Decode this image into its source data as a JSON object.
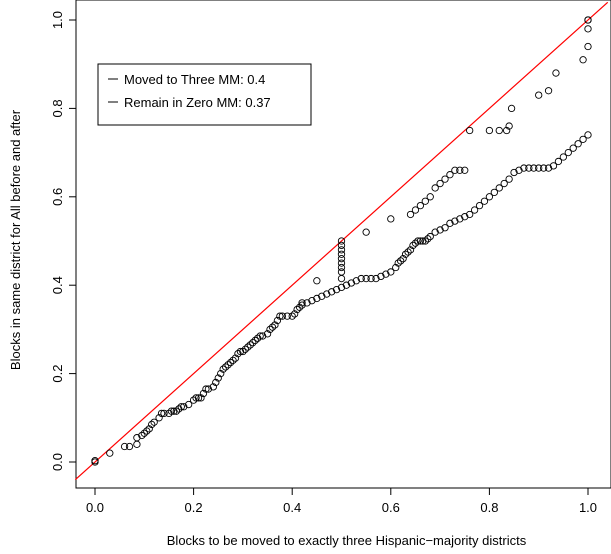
{
  "chart_data": {
    "type": "scatter",
    "xlabel": "Blocks to be moved to exactly three Hispanic−majority districts",
    "ylabel": "Blocks in same district for All before and after",
    "xlim": [
      0,
      1
    ],
    "ylim": [
      0,
      1
    ],
    "x_ticks": [
      "0.0",
      "0.2",
      "0.4",
      "0.6",
      "0.8",
      "1.0"
    ],
    "y_ticks": [
      "0.0",
      "0.2",
      "0.4",
      "0.6",
      "0.8",
      "1.0"
    ],
    "grid": false,
    "reference_line": {
      "from": [
        0,
        0
      ],
      "to": [
        1,
        1
      ],
      "color": "#ff0000"
    },
    "legend": {
      "position": "top-left",
      "entries": [
        {
          "label": "Moved to Three MM: 0.4"
        },
        {
          "label": "Remain in Zero MM:  0.37"
        }
      ]
    },
    "marker_color": "#000000",
    "points": [
      [
        0.0,
        0.0
      ],
      [
        0.0,
        0.003
      ],
      [
        0.03,
        0.02
      ],
      [
        0.06,
        0.035
      ],
      [
        0.07,
        0.035
      ],
      [
        0.085,
        0.04
      ],
      [
        0.085,
        0.055
      ],
      [
        0.095,
        0.06
      ],
      [
        0.1,
        0.065
      ],
      [
        0.105,
        0.07
      ],
      [
        0.11,
        0.075
      ],
      [
        0.115,
        0.085
      ],
      [
        0.12,
        0.09
      ],
      [
        0.13,
        0.1
      ],
      [
        0.135,
        0.11
      ],
      [
        0.14,
        0.11
      ],
      [
        0.15,
        0.11
      ],
      [
        0.155,
        0.115
      ],
      [
        0.16,
        0.115
      ],
      [
        0.165,
        0.115
      ],
      [
        0.17,
        0.12
      ],
      [
        0.175,
        0.125
      ],
      [
        0.18,
        0.125
      ],
      [
        0.19,
        0.13
      ],
      [
        0.2,
        0.14
      ],
      [
        0.205,
        0.145
      ],
      [
        0.21,
        0.145
      ],
      [
        0.215,
        0.145
      ],
      [
        0.22,
        0.155
      ],
      [
        0.225,
        0.165
      ],
      [
        0.23,
        0.165
      ],
      [
        0.24,
        0.17
      ],
      [
        0.245,
        0.18
      ],
      [
        0.25,
        0.19
      ],
      [
        0.255,
        0.2
      ],
      [
        0.26,
        0.21
      ],
      [
        0.265,
        0.215
      ],
      [
        0.27,
        0.22
      ],
      [
        0.275,
        0.225
      ],
      [
        0.28,
        0.23
      ],
      [
        0.285,
        0.235
      ],
      [
        0.29,
        0.245
      ],
      [
        0.295,
        0.25
      ],
      [
        0.3,
        0.25
      ],
      [
        0.305,
        0.255
      ],
      [
        0.31,
        0.26
      ],
      [
        0.315,
        0.265
      ],
      [
        0.32,
        0.27
      ],
      [
        0.325,
        0.275
      ],
      [
        0.33,
        0.28
      ],
      [
        0.335,
        0.285
      ],
      [
        0.34,
        0.285
      ],
      [
        0.35,
        0.29
      ],
      [
        0.355,
        0.3
      ],
      [
        0.36,
        0.305
      ],
      [
        0.365,
        0.31
      ],
      [
        0.37,
        0.32
      ],
      [
        0.375,
        0.33
      ],
      [
        0.38,
        0.33
      ],
      [
        0.39,
        0.33
      ],
      [
        0.4,
        0.33
      ],
      [
        0.405,
        0.335
      ],
      [
        0.41,
        0.345
      ],
      [
        0.415,
        0.35
      ],
      [
        0.42,
        0.355
      ],
      [
        0.43,
        0.36
      ],
      [
        0.44,
        0.365
      ],
      [
        0.45,
        0.37
      ],
      [
        0.46,
        0.375
      ],
      [
        0.47,
        0.38
      ],
      [
        0.48,
        0.385
      ],
      [
        0.49,
        0.39
      ],
      [
        0.5,
        0.395
      ],
      [
        0.51,
        0.4
      ],
      [
        0.52,
        0.405
      ],
      [
        0.53,
        0.41
      ],
      [
        0.54,
        0.415
      ],
      [
        0.55,
        0.415
      ],
      [
        0.56,
        0.415
      ],
      [
        0.57,
        0.415
      ],
      [
        0.58,
        0.42
      ],
      [
        0.59,
        0.425
      ],
      [
        0.6,
        0.43
      ],
      [
        0.61,
        0.44
      ],
      [
        0.615,
        0.45
      ],
      [
        0.62,
        0.455
      ],
      [
        0.625,
        0.46
      ],
      [
        0.63,
        0.47
      ],
      [
        0.635,
        0.475
      ],
      [
        0.64,
        0.48
      ],
      [
        0.645,
        0.49
      ],
      [
        0.65,
        0.495
      ],
      [
        0.655,
        0.5
      ],
      [
        0.66,
        0.5
      ],
      [
        0.665,
        0.5
      ],
      [
        0.67,
        0.5
      ],
      [
        0.675,
        0.505
      ],
      [
        0.68,
        0.51
      ],
      [
        0.69,
        0.52
      ],
      [
        0.7,
        0.525
      ],
      [
        0.71,
        0.53
      ],
      [
        0.72,
        0.54
      ],
      [
        0.73,
        0.545
      ],
      [
        0.74,
        0.55
      ],
      [
        0.75,
        0.555
      ],
      [
        0.76,
        0.56
      ],
      [
        0.77,
        0.57
      ],
      [
        0.78,
        0.58
      ],
      [
        0.79,
        0.59
      ],
      [
        0.8,
        0.6
      ],
      [
        0.81,
        0.61
      ],
      [
        0.82,
        0.62
      ],
      [
        0.83,
        0.63
      ],
      [
        0.84,
        0.64
      ],
      [
        0.85,
        0.655
      ],
      [
        0.86,
        0.66
      ],
      [
        0.87,
        0.665
      ],
      [
        0.88,
        0.665
      ],
      [
        0.89,
        0.665
      ],
      [
        0.9,
        0.665
      ],
      [
        0.91,
        0.665
      ],
      [
        0.92,
        0.665
      ],
      [
        0.93,
        0.67
      ],
      [
        0.94,
        0.68
      ],
      [
        0.95,
        0.69
      ],
      [
        0.96,
        0.7
      ],
      [
        0.97,
        0.71
      ],
      [
        0.98,
        0.72
      ],
      [
        0.99,
        0.73
      ],
      [
        1.0,
        0.74
      ],
      [
        0.76,
        0.75
      ],
      [
        0.8,
        0.75
      ],
      [
        0.82,
        0.75
      ],
      [
        0.835,
        0.75
      ],
      [
        0.84,
        0.76
      ],
      [
        0.845,
        0.8
      ],
      [
        0.9,
        0.83
      ],
      [
        0.92,
        0.84
      ],
      [
        0.935,
        0.88
      ],
      [
        0.99,
        0.91
      ],
      [
        1.0,
        0.94
      ],
      [
        1.0,
        0.98
      ],
      [
        1.0,
        1.0
      ],
      [
        1.0,
        1.0
      ],
      [
        0.5,
        0.46
      ],
      [
        0.5,
        0.47
      ],
      [
        0.5,
        0.48
      ],
      [
        0.5,
        0.49
      ],
      [
        0.5,
        0.5
      ],
      [
        0.5,
        0.415
      ],
      [
        0.5,
        0.43
      ],
      [
        0.5,
        0.44
      ],
      [
        0.5,
        0.45
      ],
      [
        0.42,
        0.36
      ],
      [
        0.45,
        0.41
      ],
      [
        0.55,
        0.52
      ],
      [
        0.6,
        0.55
      ],
      [
        0.64,
        0.56
      ],
      [
        0.65,
        0.57
      ],
      [
        0.66,
        0.58
      ],
      [
        0.67,
        0.59
      ],
      [
        0.68,
        0.6
      ],
      [
        0.69,
        0.62
      ],
      [
        0.7,
        0.63
      ],
      [
        0.71,
        0.64
      ],
      [
        0.72,
        0.65
      ],
      [
        0.73,
        0.66
      ],
      [
        0.74,
        0.66
      ],
      [
        0.75,
        0.66
      ]
    ]
  }
}
